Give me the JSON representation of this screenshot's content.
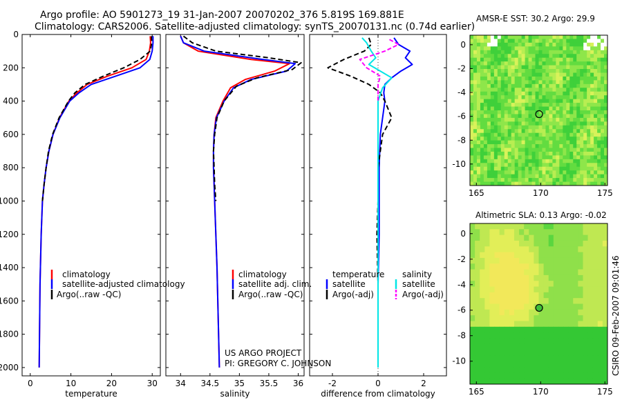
{
  "header": {
    "line1": "Argo profile: AO 5901273_19 31-Jan-2007 20070202_376 5.819S 169.881E",
    "line2": "Climatology: CARS2006. Satellite-adjusted climatology: synTS_20070131.nc (0.74d earlier)"
  },
  "side_stamp": "CSIRO 09-Feb-2007 09:01:46",
  "credits": {
    "line1": "US ARGO PROJECT",
    "line2": "PI: GREGORY C. JOHNSON"
  },
  "colors": {
    "climatology": "#ff0000",
    "satellite": "#0000ff",
    "argo": "#000000",
    "cyan": "#00e5e5",
    "magenta": "#ff00ff"
  },
  "chart_data": [
    {
      "type": "line",
      "xlabel": "temperature",
      "ylabel": "",
      "xlim": [
        -2,
        32
      ],
      "ylim": [
        2050,
        0
      ],
      "xticks": [
        "0",
        "10",
        "20",
        "30"
      ],
      "yticks": [
        "0",
        "200",
        "400",
        "600",
        "800",
        "1000",
        "1200",
        "1400",
        "1600",
        "1800",
        "2000"
      ],
      "legend": {
        "placement": "center-left",
        "entries": [
          "climatology",
          "satellite-adjusted climatology",
          "Argo(..raw -QC)"
        ]
      },
      "series": [
        {
          "name": "climatology",
          "color": "#ff0000",
          "x": [
            29.5,
            29.6,
            29.3,
            28.5,
            25,
            19,
            14,
            11.5,
            9.5,
            7.2,
            5.6,
            4.6,
            3.9,
            3.4,
            3.0,
            2.7,
            2.4,
            2.2
          ],
          "y": [
            10,
            50,
            100,
            150,
            200,
            250,
            300,
            350,
            400,
            500,
            600,
            700,
            800,
            900,
            1000,
            1200,
            1500,
            2000
          ]
        },
        {
          "name": "satellite-adjusted climatology",
          "color": "#0000ff",
          "x": [
            30.2,
            30.2,
            30.0,
            29.4,
            27,
            21,
            15,
            12,
            9.7,
            7.3,
            5.6,
            4.6,
            3.9,
            3.4,
            3.0,
            2.7,
            2.4,
            2.2
          ],
          "y": [
            10,
            50,
            100,
            150,
            200,
            250,
            300,
            350,
            400,
            500,
            600,
            700,
            800,
            900,
            1000,
            1200,
            1500,
            2000
          ]
        },
        {
          "name": "Argo(..raw -QC)",
          "color": "#000000",
          "x": [
            29.8,
            29.9,
            29.5,
            27,
            23,
            18,
            13.5,
            11,
            9.4,
            7.1,
            5.5,
            4.5,
            3.9,
            3.4,
            3.0
          ],
          "y": [
            10,
            50,
            100,
            150,
            200,
            250,
            300,
            350,
            400,
            500,
            600,
            700,
            800,
            900,
            1000
          ]
        }
      ]
    },
    {
      "type": "line",
      "xlabel": "salinity",
      "ylabel": "",
      "xlim": [
        33.75,
        36.1
      ],
      "ylim": [
        2050,
        0
      ],
      "xticks": [
        "34",
        "34.5",
        "35",
        "35.5",
        "36"
      ],
      "legend": {
        "placement": "center-right",
        "entries": [
          "climatology",
          "satellite adj. clim.",
          "Argo(..raw -QC)"
        ]
      },
      "series": [
        {
          "name": "climatology",
          "color": "#ff0000",
          "x": [
            34.0,
            34.05,
            34.3,
            35.2,
            35.85,
            35.6,
            35.1,
            34.85,
            34.72,
            34.6,
            34.57,
            34.56,
            34.56,
            34.57,
            34.58,
            34.62,
            34.66
          ],
          "y": [
            10,
            50,
            100,
            150,
            175,
            220,
            270,
            320,
            400,
            500,
            600,
            700,
            800,
            900,
            1000,
            1400,
            2000
          ]
        },
        {
          "name": "satellite adj. clim.",
          "color": "#0000ff",
          "x": [
            34.0,
            34.05,
            34.4,
            35.4,
            35.95,
            35.8,
            35.2,
            34.9,
            34.74,
            34.61,
            34.57,
            34.56,
            34.56,
            34.57,
            34.58,
            34.62,
            34.66
          ],
          "y": [
            10,
            50,
            100,
            150,
            175,
            220,
            270,
            320,
            400,
            500,
            600,
            700,
            800,
            900,
            1000,
            1400,
            2000
          ]
        },
        {
          "name": "Argo(..raw -QC)",
          "color": "#000000",
          "x": [
            34.05,
            34.2,
            34.6,
            35.5,
            36.05,
            35.9,
            35.3,
            34.95,
            34.74,
            34.62,
            34.58,
            34.56,
            34.57,
            34.58,
            34.6
          ],
          "y": [
            10,
            50,
            100,
            140,
            170,
            210,
            260,
            310,
            400,
            500,
            600,
            700,
            800,
            900,
            1000
          ]
        }
      ]
    },
    {
      "type": "line",
      "xlabel": "difference from climatology",
      "ylabel": "",
      "xlim": [
        -3,
        3
      ],
      "ylim": [
        2050,
        0
      ],
      "xticks": [
        "-2",
        "0",
        "2"
      ],
      "legend": {
        "placement": "center",
        "groups": [
          {
            "title": "temperature",
            "entries": [
              "satellite",
              "Argo(-adj)"
            ]
          },
          {
            "title": "salinity",
            "entries": [
              "satellite",
              "Argo(-adj)"
            ]
          }
        ]
      },
      "series": [
        {
          "name": "temperature satellite",
          "color": "#0000ff",
          "x": [
            0.7,
            0.9,
            1.4,
            1.2,
            1.5,
            1.0,
            0.6,
            0.3,
            0.25,
            0.3,
            0.2,
            0.1,
            0.05,
            0.05,
            0.05,
            0.0,
            0.0
          ],
          "y": [
            20,
            60,
            100,
            140,
            180,
            220,
            260,
            300,
            350,
            400,
            500,
            600,
            800,
            1000,
            1200,
            1500,
            2000
          ]
        },
        {
          "name": "temperature Argo(-adj)",
          "color": "#000000",
          "x": [
            -0.4,
            -0.3,
            -0.6,
            -1.5,
            -2.2,
            -1.2,
            -0.4,
            0.1,
            0.3,
            0.45,
            0.6,
            0.2,
            0.0,
            0.0,
            -0.05,
            0.0
          ],
          "y": [
            20,
            60,
            100,
            150,
            200,
            250,
            300,
            350,
            400,
            450,
            500,
            600,
            800,
            1000,
            1200,
            1500
          ]
        },
        {
          "name": "salinity satellite",
          "color": "#00e5e5",
          "x": [
            -0.7,
            -0.5,
            -0.3,
            -0.1,
            -0.4,
            0.1,
            0.6,
            0.2,
            0.0,
            0.0,
            0.0,
            0.0,
            0.0,
            0.0
          ],
          "y": [
            20,
            50,
            100,
            140,
            180,
            220,
            260,
            320,
            400,
            600,
            800,
            1200,
            1600,
            2000
          ]
        },
        {
          "name": "salinity Argo(-adj)",
          "color": "#ff00ff",
          "x": [
            0.5,
            0.9,
            0.3,
            -0.8,
            -0.5,
            0.1,
            0.0,
            0.0
          ],
          "y": [
            30,
            60,
            100,
            150,
            200,
            250,
            300,
            400
          ]
        }
      ]
    },
    {
      "type": "heatmap",
      "title": "AMSR-E SST: 30.2 Argo: 29.9",
      "xlim": [
        164.5,
        175.2
      ],
      "ylim": [
        -11.8,
        0.8
      ],
      "xticks": [
        "165",
        "170",
        "175"
      ],
      "yticks": [
        "0",
        "-2",
        "-4",
        "-6",
        "-8",
        "-10"
      ],
      "marker": {
        "lon": 169.88,
        "lat": -5.82
      }
    },
    {
      "type": "heatmap",
      "title": "Altimetric SLA: 0.13 Argo: -0.02",
      "xlim": [
        164.5,
        175.2
      ],
      "ylim": [
        -11.8,
        0.8
      ],
      "xticks": [
        "165",
        "170",
        "175"
      ],
      "yticks": [
        "0",
        "-2",
        "-4",
        "-6",
        "-8",
        "-10"
      ],
      "marker": {
        "lon": 169.88,
        "lat": -5.82
      }
    }
  ]
}
